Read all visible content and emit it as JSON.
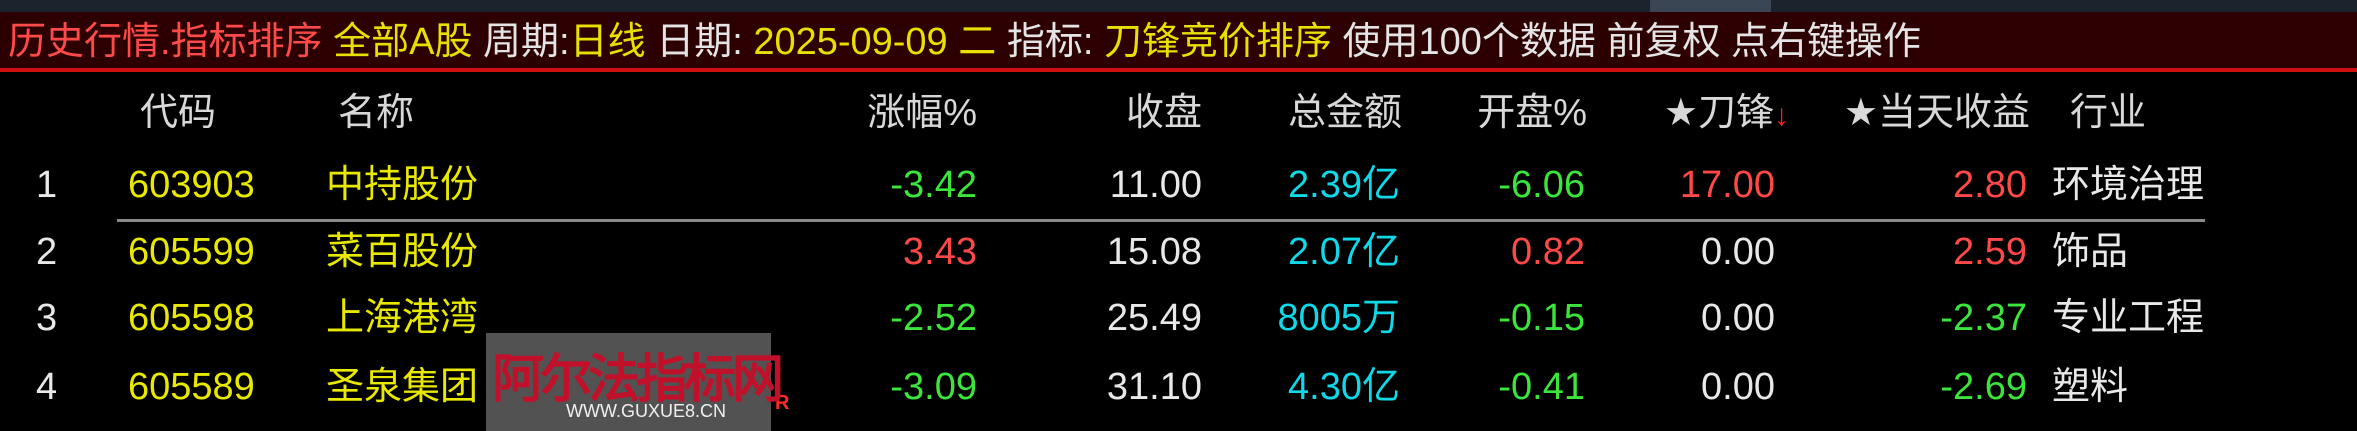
{
  "title_bar": {
    "module": "历史行情.指标排序",
    "market": "全部A股",
    "period_label": "周期:",
    "period": "日线",
    "date_label": "日期:",
    "date": "2025-09-09 二",
    "indicator_label": "指标:",
    "indicator": "刀锋竞价排序",
    "info": "使用100个数据 前复权 点右键操作"
  },
  "columns": {
    "code": "代码",
    "name": "名称",
    "change": "涨幅%",
    "close": "收盘",
    "amount": "总金额",
    "open": "开盘%",
    "blade": "★刀锋",
    "blade_sort": "↓",
    "day_return": "★当天收益",
    "industry": "行业"
  },
  "rows": [
    {
      "idx": "1",
      "code": "603903",
      "name": "中持股份",
      "change": "-3.42",
      "close": "11.00",
      "amount": "2.39亿",
      "open": "-6.06",
      "blade": "17.00",
      "day_return": "2.80",
      "industry": "环境治理"
    },
    {
      "idx": "2",
      "code": "605599",
      "name": "菜百股份",
      "change": "3.43",
      "close": "15.08",
      "amount": "2.07亿",
      "open": "0.82",
      "blade": "0.00",
      "day_return": "2.59",
      "industry": "饰品"
    },
    {
      "idx": "3",
      "code": "605598",
      "name": "上海港湾",
      "change": "-2.52",
      "close": "25.49",
      "amount": "8005万",
      "open": "-0.15",
      "blade": "0.00",
      "day_return": "-2.37",
      "industry": "专业工程"
    },
    {
      "idx": "4",
      "code": "605589",
      "name": "圣泉集团",
      "change": "-3.09",
      "close": "31.10",
      "amount": "4.30亿",
      "open": "-0.41",
      "blade": "0.00",
      "day_return": "-2.69",
      "industry": "塑料"
    }
  ],
  "marker": "R",
  "watermark": {
    "title": "阿尔法指标网",
    "url": "WWW.GUXUE8.CN"
  },
  "colors": {
    "up": "#ff4848",
    "down": "#3ce43c",
    "code": "#e8e800",
    "amount": "#10d8e8",
    "title_bg": "#2c0000"
  }
}
